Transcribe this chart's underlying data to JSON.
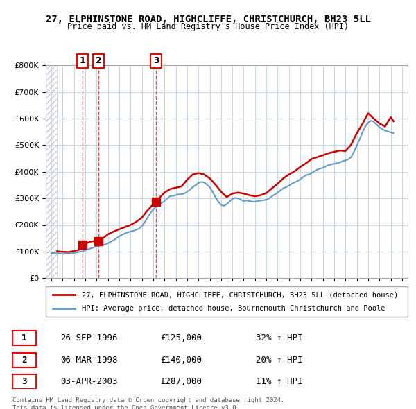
{
  "title": "27, ELPHINSTONE ROAD, HIGHCLIFFE, CHRISTCHURCH, BH23 5LL",
  "subtitle": "Price paid vs. HM Land Registry's House Price Index (HPI)",
  "legend_property": "27, ELPHINSTONE ROAD, HIGHCLIFFE, CHRISTCHURCH, BH23 5LL (detached house)",
  "legend_hpi": "HPI: Average price, detached house, Bournemouth Christchurch and Poole",
  "footer1": "Contains HM Land Registry data © Crown copyright and database right 2024.",
  "footer2": "This data is licensed under the Open Government Licence v3.0.",
  "sales": [
    {
      "num": 1,
      "date": "26-SEP-1996",
      "price": 125000,
      "pct": "32%",
      "dir": "↑",
      "x": 1996.74
    },
    {
      "num": 2,
      "date": "06-MAR-1998",
      "price": 140000,
      "pct": "20%",
      "dir": "↑",
      "x": 1998.18
    },
    {
      "num": 3,
      "date": "03-APR-2003",
      "price": 287000,
      "pct": "11%",
      "dir": "↑",
      "x": 2003.26
    }
  ],
  "property_color": "#cc0000",
  "hpi_color": "#6699cc",
  "hatch_color": "#cccccc",
  "grid_color": "#c8d8e8",
  "ylim": [
    0,
    800000
  ],
  "yticks": [
    0,
    100000,
    200000,
    300000,
    400000,
    500000,
    600000,
    700000,
    800000
  ],
  "xlim": [
    1993.5,
    2025.5
  ],
  "xticks": [
    1994,
    1995,
    1996,
    1997,
    1998,
    1999,
    2000,
    2001,
    2002,
    2003,
    2004,
    2005,
    2006,
    2007,
    2008,
    2009,
    2010,
    2011,
    2012,
    2013,
    2014,
    2015,
    2016,
    2017,
    2018,
    2019,
    2020,
    2021,
    2022,
    2023,
    2024,
    2025
  ],
  "hpi_data": {
    "x": [
      1994.0,
      1994.25,
      1994.5,
      1994.75,
      1995.0,
      1995.25,
      1995.5,
      1995.75,
      1996.0,
      1996.25,
      1996.5,
      1996.75,
      1997.0,
      1997.25,
      1997.5,
      1997.75,
      1998.0,
      1998.25,
      1998.5,
      1998.75,
      1999.0,
      1999.25,
      1999.5,
      1999.75,
      2000.0,
      2000.25,
      2000.5,
      2000.75,
      2001.0,
      2001.25,
      2001.5,
      2001.75,
      2002.0,
      2002.25,
      2002.5,
      2002.75,
      2003.0,
      2003.25,
      2003.5,
      2003.75,
      2004.0,
      2004.25,
      2004.5,
      2004.75,
      2005.0,
      2005.25,
      2005.5,
      2005.75,
      2006.0,
      2006.25,
      2006.5,
      2006.75,
      2007.0,
      2007.25,
      2007.5,
      2007.75,
      2008.0,
      2008.25,
      2008.5,
      2008.75,
      2009.0,
      2009.25,
      2009.5,
      2009.75,
      2010.0,
      2010.25,
      2010.5,
      2010.75,
      2011.0,
      2011.25,
      2011.5,
      2011.75,
      2012.0,
      2012.25,
      2012.5,
      2012.75,
      2013.0,
      2013.25,
      2013.5,
      2013.75,
      2014.0,
      2014.25,
      2014.5,
      2014.75,
      2015.0,
      2015.25,
      2015.5,
      2015.75,
      2016.0,
      2016.25,
      2016.5,
      2016.75,
      2017.0,
      2017.25,
      2017.5,
      2017.75,
      2018.0,
      2018.25,
      2018.5,
      2018.75,
      2019.0,
      2019.25,
      2019.5,
      2019.75,
      2020.0,
      2020.25,
      2020.5,
      2020.75,
      2021.0,
      2021.25,
      2021.5,
      2021.75,
      2022.0,
      2022.25,
      2022.5,
      2022.75,
      2023.0,
      2023.25,
      2023.5,
      2023.75,
      2024.0,
      2024.25
    ],
    "y": [
      94000,
      95000,
      95500,
      93000,
      91000,
      91500,
      92000,
      93000,
      95000,
      97000,
      99000,
      101000,
      105000,
      109000,
      112000,
      116000,
      120000,
      122000,
      125000,
      127000,
      131000,
      137000,
      143000,
      150000,
      157000,
      163000,
      168000,
      172000,
      175000,
      178000,
      182000,
      186000,
      195000,
      210000,
      228000,
      245000,
      258000,
      268000,
      277000,
      283000,
      290000,
      300000,
      308000,
      310000,
      312000,
      315000,
      316000,
      318000,
      325000,
      333000,
      342000,
      350000,
      358000,
      362000,
      360000,
      352000,
      342000,
      325000,
      305000,
      288000,
      275000,
      272000,
      278000,
      288000,
      298000,
      302000,
      300000,
      295000,
      290000,
      292000,
      290000,
      288000,
      288000,
      290000,
      292000,
      293000,
      295000,
      300000,
      308000,
      315000,
      322000,
      330000,
      338000,
      342000,
      348000,
      355000,
      360000,
      365000,
      372000,
      380000,
      387000,
      390000,
      395000,
      402000,
      408000,
      412000,
      415000,
      420000,
      425000,
      428000,
      430000,
      432000,
      435000,
      440000,
      443000,
      447000,
      455000,
      475000,
      498000,
      522000,
      548000,
      570000,
      585000,
      592000,
      588000,
      578000,
      568000,
      560000,
      555000,
      552000,
      548000,
      545000
    ]
  },
  "property_data": {
    "x": [
      1994.5,
      1995.0,
      1995.5,
      1996.0,
      1996.5,
      1996.74,
      1997.0,
      1997.5,
      1998.0,
      1998.18,
      1998.5,
      1999.0,
      1999.5,
      2000.0,
      2000.5,
      2001.0,
      2001.5,
      2002.0,
      2002.5,
      2003.0,
      2003.26,
      2003.5,
      2004.0,
      2004.5,
      2005.0,
      2005.5,
      2006.0,
      2006.5,
      2007.0,
      2007.5,
      2008.0,
      2008.5,
      2009.0,
      2009.5,
      2010.0,
      2010.5,
      2011.0,
      2011.5,
      2012.0,
      2012.5,
      2013.0,
      2013.5,
      2014.0,
      2014.5,
      2015.0,
      2015.5,
      2016.0,
      2016.5,
      2017.0,
      2017.5,
      2018.0,
      2018.5,
      2019.0,
      2019.5,
      2020.0,
      2020.5,
      2021.0,
      2021.5,
      2022.0,
      2022.5,
      2023.0,
      2023.5,
      2024.0,
      2024.25
    ],
    "y": [
      101000,
      99000,
      98000,
      102000,
      107000,
      125000,
      130000,
      138000,
      140000,
      140000,
      148000,
      165000,
      175000,
      184000,
      192000,
      200000,
      212000,
      228000,
      255000,
      278000,
      287000,
      300000,
      322000,
      335000,
      340000,
      345000,
      370000,
      390000,
      395000,
      390000,
      375000,
      352000,
      325000,
      305000,
      318000,
      322000,
      318000,
      312000,
      308000,
      312000,
      320000,
      338000,
      355000,
      375000,
      390000,
      402000,
      418000,
      432000,
      448000,
      455000,
      462000,
      470000,
      475000,
      480000,
      478000,
      502000,
      545000,
      580000,
      620000,
      600000,
      582000,
      570000,
      605000,
      590000
    ]
  }
}
